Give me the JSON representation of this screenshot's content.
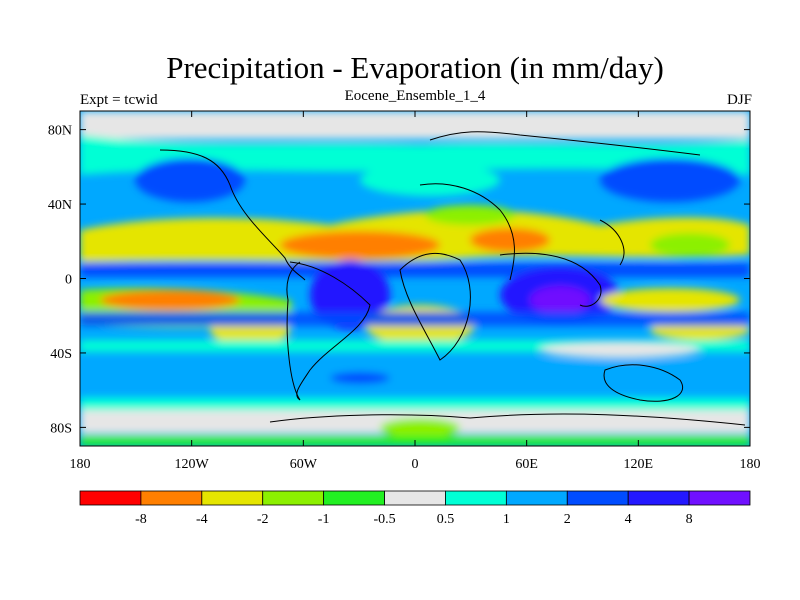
{
  "title": "Precipitation - Evaporation (in mm/day)",
  "subtitle_left": "Expt = tcwid",
  "subtitle_center": "Eocene_Ensemble_1_4",
  "subtitle_right": "DJF",
  "map": {
    "lon_labels": [
      "180",
      "120W",
      "60W",
      "0",
      "60E",
      "120E",
      "180"
    ],
    "lon_values": [
      -180,
      -120,
      -60,
      0,
      60,
      120,
      180
    ],
    "lat_labels": [
      "80N",
      "40N",
      "0",
      "40S",
      "80S"
    ],
    "lat_values": [
      80,
      40,
      0,
      -40,
      -80
    ],
    "lon_range": [
      -180,
      180
    ],
    "lat_range": [
      -90,
      90
    ]
  },
  "colorbar": {
    "colors": [
      "#ff0000",
      "#ff7f00",
      "#e5e500",
      "#8cf000",
      "#22f022",
      "#e6e6e6",
      "#00ffd5",
      "#00a8ff",
      "#004cff",
      "#2418ff",
      "#7010ff"
    ],
    "labels": [
      "-8",
      "-4",
      "-2",
      "-1",
      "-0.5",
      "0.5",
      "1",
      "2",
      "4",
      "8"
    ]
  }
}
